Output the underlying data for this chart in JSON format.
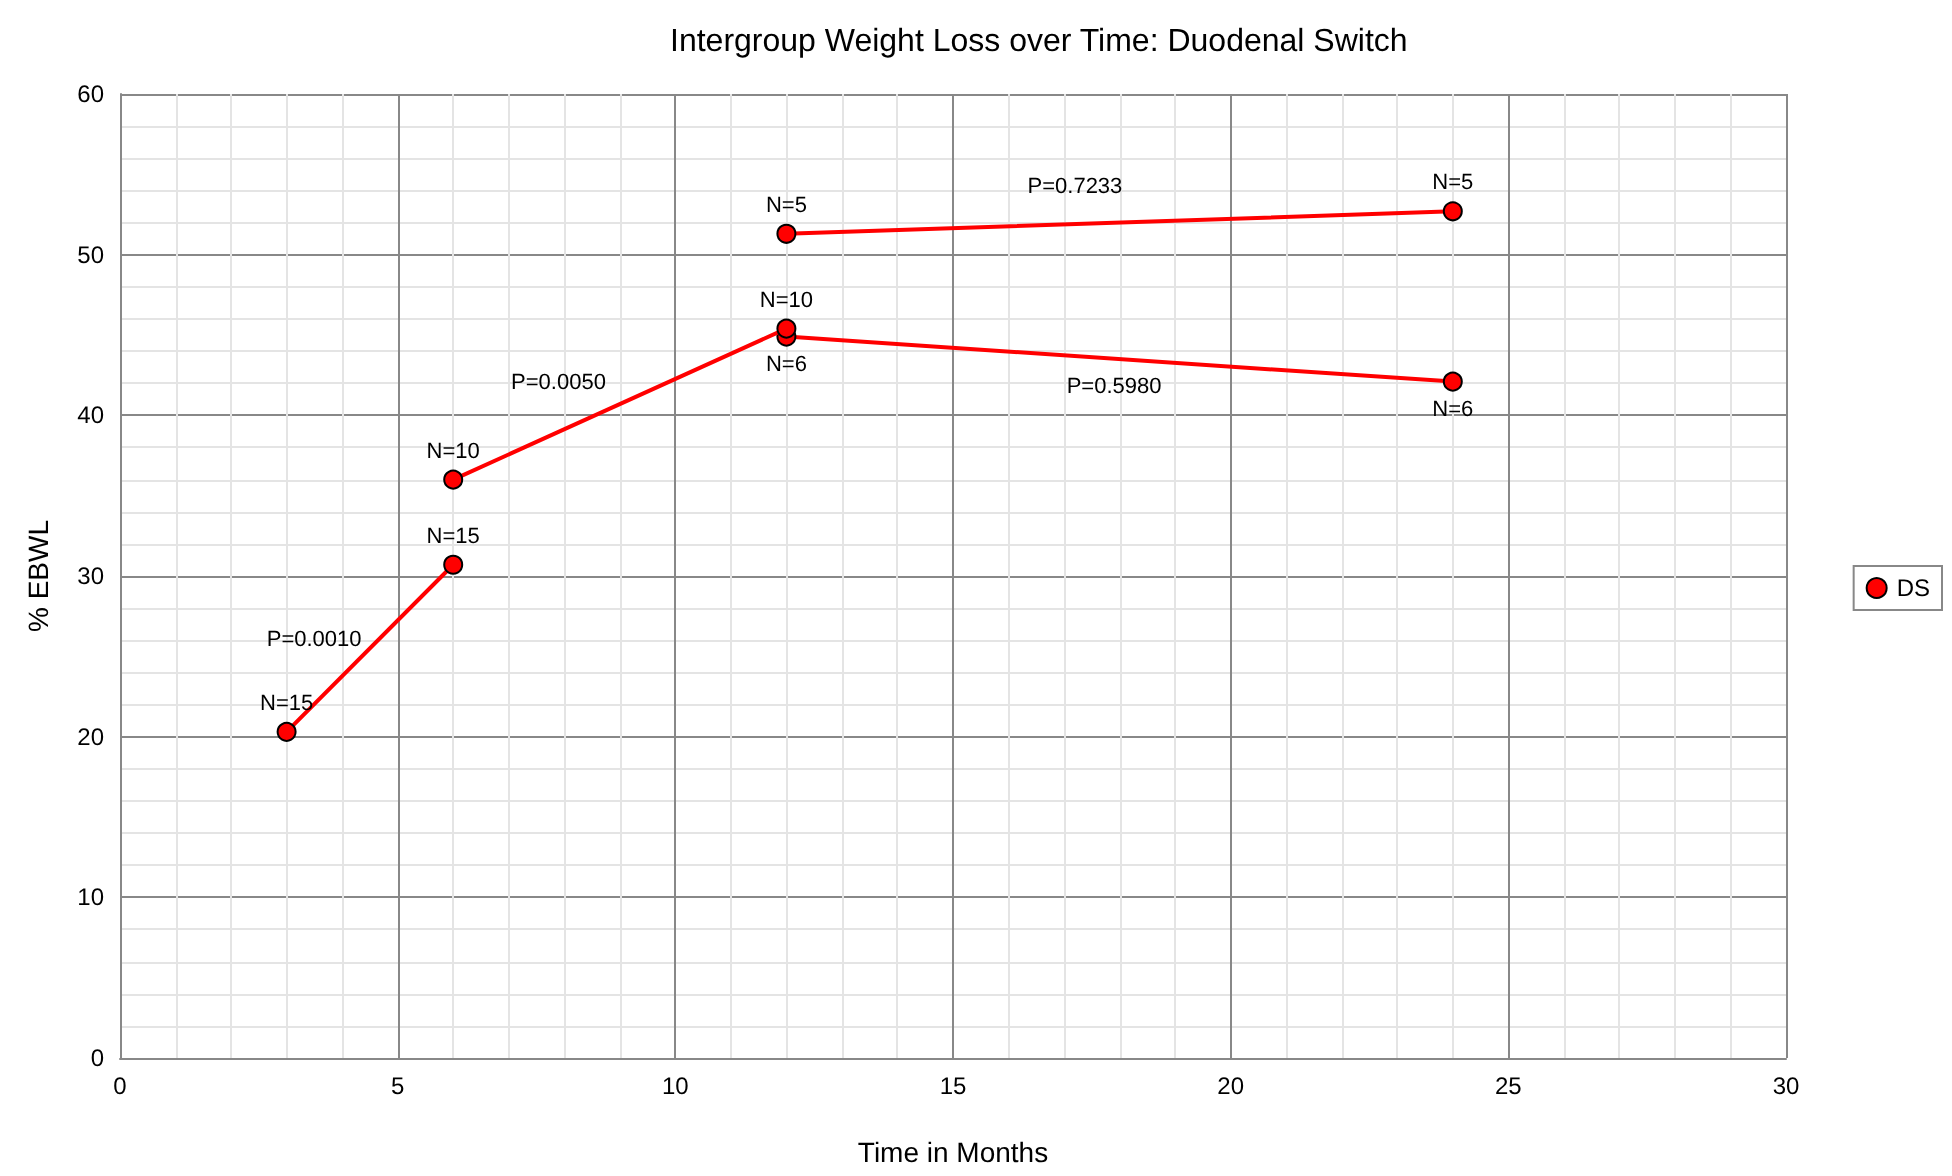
{
  "chart_data": {
    "type": "line",
    "title": "Intergroup Weight Loss over Time: Duodenal Switch",
    "xlabel": "Time in Months",
    "ylabel": "% EBWL",
    "series": [
      {
        "name": "DS",
        "color": "#ff0000",
        "x": [
          3,
          6
        ],
        "values": [
          20.3,
          30.7
        ]
      },
      {
        "color": "#ff0000",
        "x": [
          6,
          12
        ],
        "values": [
          36.0,
          45.4
        ]
      },
      {
        "color": "#ff0000",
        "x": [
          12,
          24
        ],
        "values": [
          44.9,
          42.1
        ]
      },
      {
        "color": "#ff0000",
        "x": [
          12,
          24
        ],
        "values": [
          51.3,
          52.7
        ]
      }
    ],
    "xlim": [
      0,
      30
    ],
    "xticks": [
      0,
      5,
      10,
      15,
      20,
      25,
      30
    ],
    "ylim": [
      0,
      60
    ],
    "yticks": [
      0,
      10,
      20,
      30,
      40,
      50,
      60
    ],
    "grid": true,
    "legend": "right",
    "marker": "circle",
    "line_style": "solid",
    "annotations": [
      {
        "text": "N=15",
        "x": 3,
        "y": 20.3
      },
      {
        "text": "N=15",
        "x": 6,
        "y": 30.7
      },
      {
        "text": "N=10",
        "x": 6,
        "y": 36.0
      },
      {
        "text": "N=10",
        "x": 12,
        "y": 45.4
      },
      {
        "text": "N=6",
        "x": 12,
        "y": 44.9
      },
      {
        "text": "N=6",
        "x": 24,
        "y": 42.1
      },
      {
        "text": "N=5",
        "x": 12,
        "y": 51.3
      },
      {
        "text": "N=5",
        "x": 24,
        "y": 52.7
      },
      {
        "text": "P=0.0010",
        "x": 4.0,
        "y": 23.8
      },
      {
        "text": "P=0.0050",
        "x": 8.4,
        "y": 39.8
      },
      {
        "text": "P=0.7233",
        "x": 17.7,
        "y": 52.0
      },
      {
        "text": "P=0.5980",
        "x": 17.9,
        "y": 43.5
      }
    ]
  }
}
